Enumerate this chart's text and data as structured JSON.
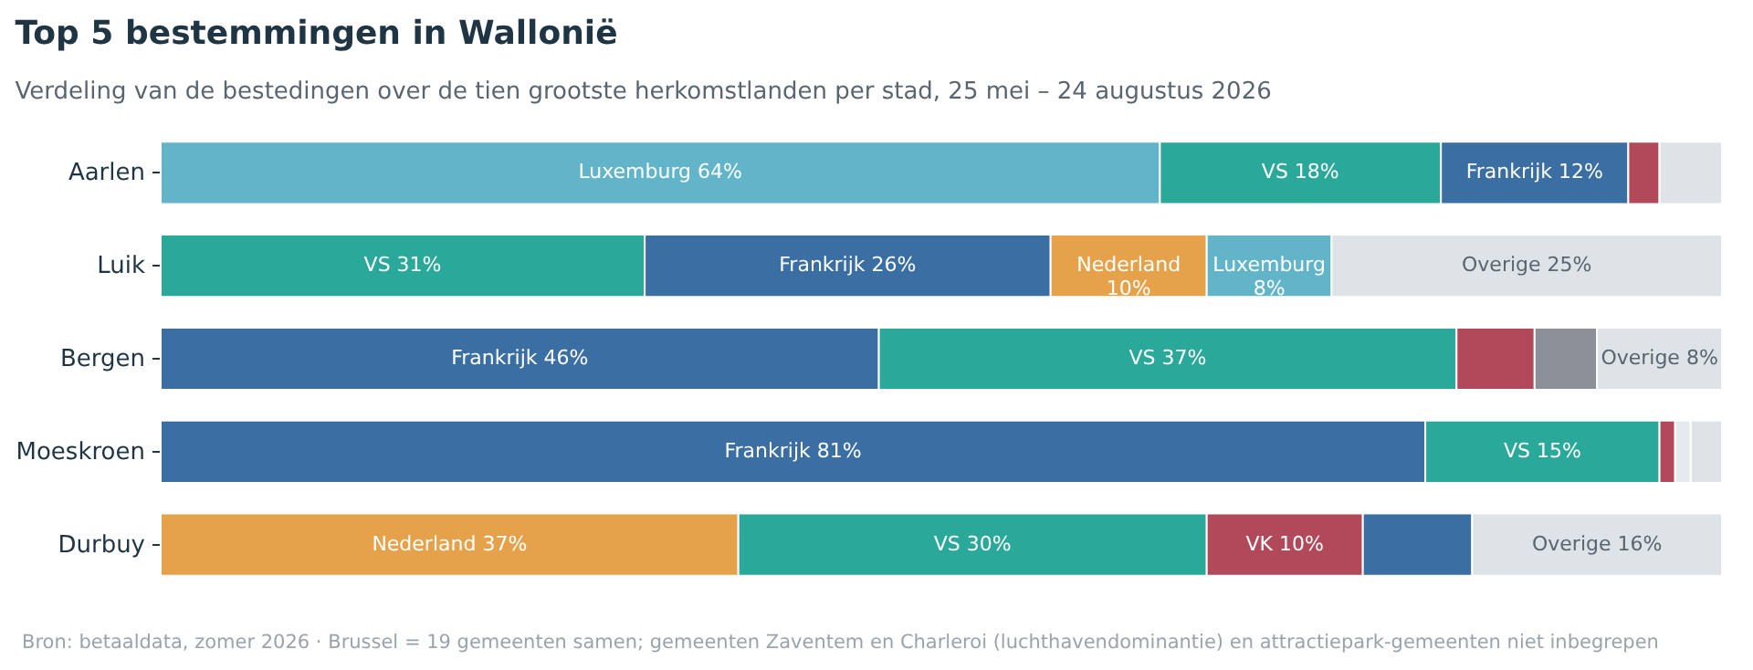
{
  "chart_data": {
    "type": "bar",
    "orientation": "horizontal",
    "stacked": true,
    "title": "Top 5 bestemmingen in Wallonië",
    "subtitle": "Verdeling van de bestedingen over de tien grootste herkomstlanden per stad, 25 mei – 24 augustus 2026",
    "categories": [
      "Aarlen",
      "Luik",
      "Bergen",
      "Moeskroen",
      "Durbuy"
    ],
    "xlim": [
      0,
      100
    ],
    "tick_labels": "y",
    "legend": false,
    "series": [
      {
        "values": [
          64,
          31,
          46,
          81,
          37
        ],
        "colors": [
          "#62b5c9",
          "#2aa89a",
          "#3b6ea3",
          "#3b6ea3",
          "#e5a24a"
        ],
        "value_labels": [
          "Luxemburg 64%",
          "VS 31%",
          "Frankrijk 46%",
          "Frankrijk 81%",
          "Nederland 37%"
        ]
      },
      {
        "values": [
          18,
          26,
          37,
          15,
          30
        ],
        "colors": [
          "#2aa89a",
          "#3b6ea3",
          "#2aa89a",
          "#2aa89a",
          "#2aa89a"
        ],
        "value_labels": [
          "VS 18%",
          "Frankrijk 26%",
          "VS 37%",
          "VS 15%",
          "VS 30%"
        ]
      },
      {
        "values": [
          12,
          10,
          5,
          1,
          10
        ],
        "colors": [
          "#3b6ea3",
          "#e5a24a",
          "#b2495b",
          "#b2495b",
          "#b2495b"
        ],
        "value_labels": [
          "Frankrijk 12%",
          "Nederland 10%",
          null,
          null,
          "VK 10%"
        ]
      },
      {
        "values": [
          2,
          8,
          4,
          1,
          7
        ],
        "colors": [
          "#b2495b",
          "#62b5c9",
          "#8c9099",
          "#e6eaec",
          "#3b6ea3"
        ],
        "value_labels": [
          null,
          "Luxemburg 8%",
          null,
          null,
          null
        ]
      },
      {
        "values": [
          4,
          25,
          8,
          2,
          16
        ],
        "colors": [
          "#dde3e6",
          "#dde3e6",
          "#dde3e6",
          "#dde3e6",
          "#dde3e6"
        ],
        "value_labels": [
          null,
          "Overige 25%",
          "Overige 8%",
          null,
          "Overige 16%"
        ]
      }
    ],
    "annotations": [
      "Bron: betaaldata, zomer 2026 · Brussel = 19 gemeenten samen; gemeenten Zaventem en Charleroi (luchthavendominantie) en attractiepark-gemeenten niet inbegrepen"
    ]
  }
}
